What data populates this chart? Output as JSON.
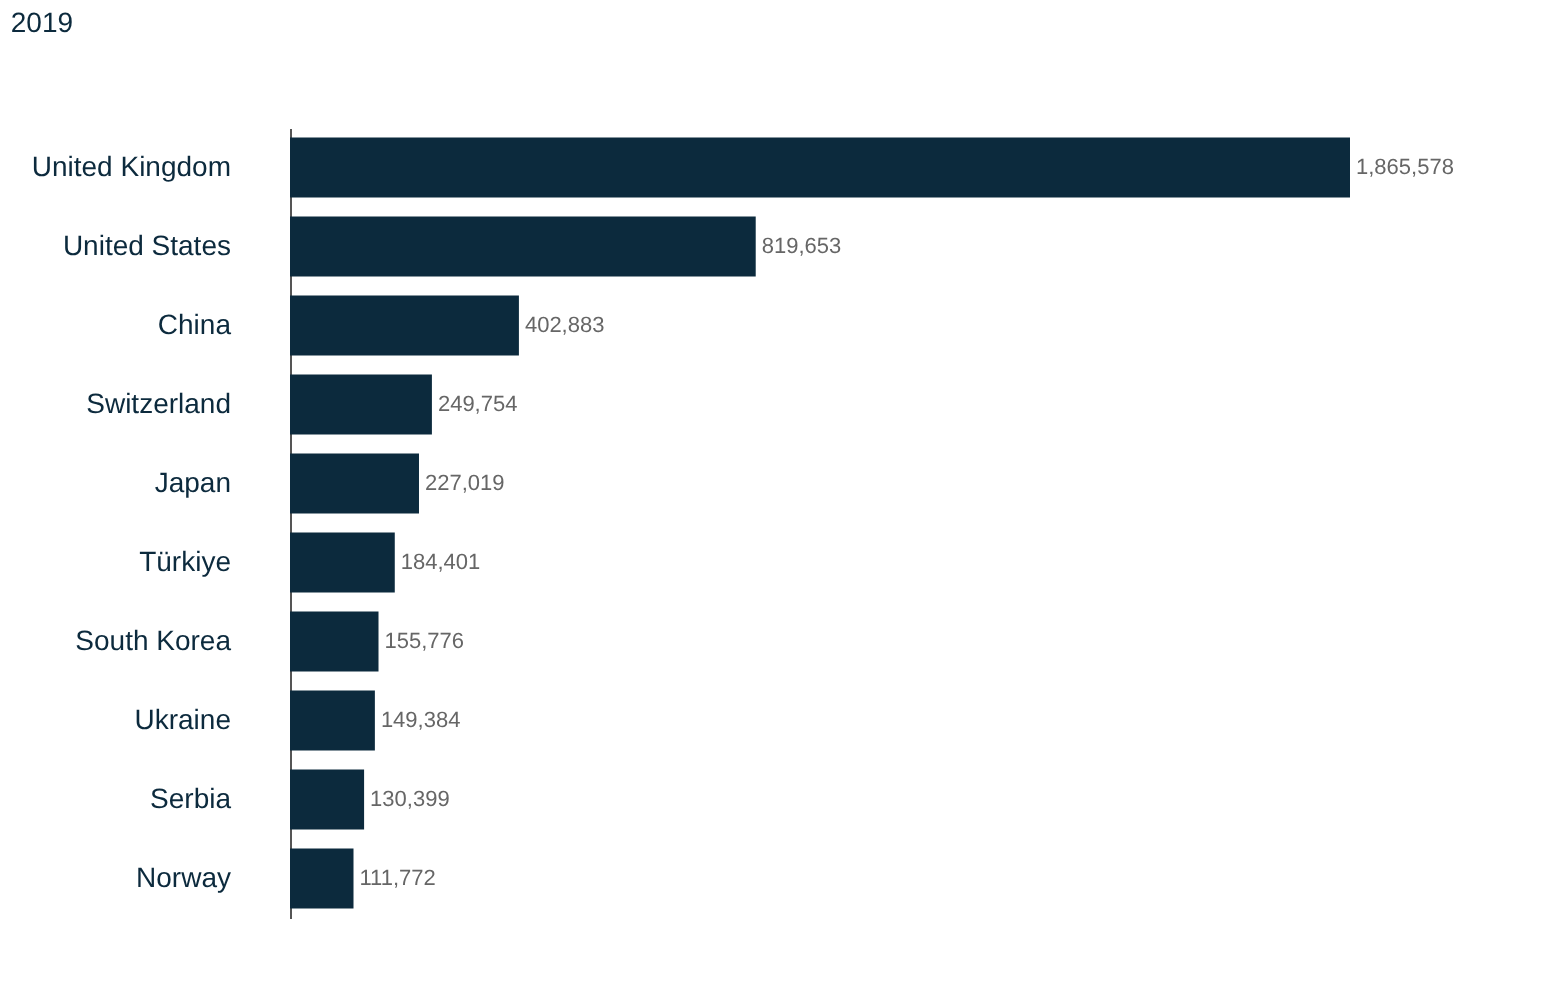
{
  "chart_data": {
    "type": "bar",
    "orientation": "horizontal",
    "categories": [
      "United Kingdom",
      "United States",
      "China",
      "Switzerland",
      "Japan",
      "Türkiye",
      "South Korea",
      "Ukraine",
      "Serbia",
      "Norway"
    ],
    "values": [
      1865578,
      819653,
      402883,
      249754,
      227019,
      184401,
      155776,
      149384,
      130399,
      111772
    ],
    "value_labels": [
      "1,865,578",
      "819,653",
      "402,883",
      "249,754",
      "227,019",
      "184,401",
      "155,776",
      "149,384",
      "130,399",
      "111,772"
    ],
    "color": "#0c2a3d",
    "grid": false,
    "annotations": [
      "2019"
    ]
  }
}
